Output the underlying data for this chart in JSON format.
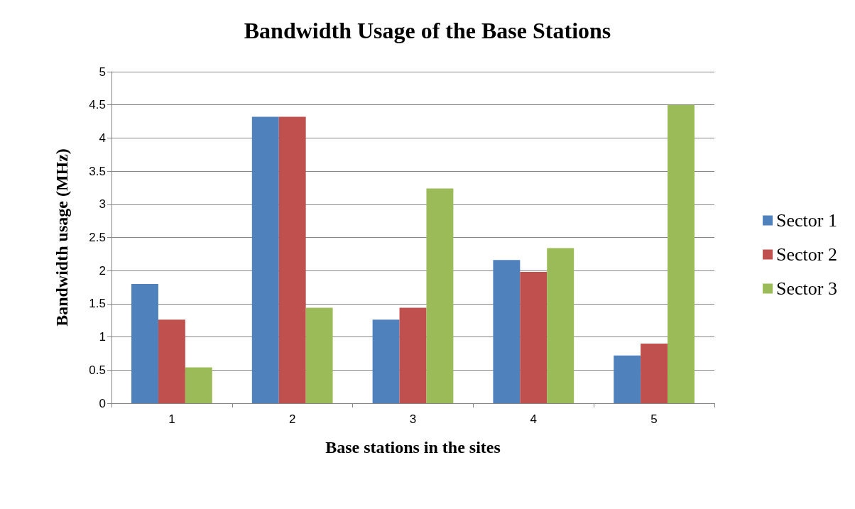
{
  "chart_data": {
    "type": "bar",
    "title": "Bandwidth Usage of the Base Stations",
    "xlabel": "Base stations in the sites",
    "ylabel": "Bandwidth usage (MHz)",
    "categories": [
      "1",
      "2",
      "3",
      "4",
      "5"
    ],
    "series": [
      {
        "name": "Sector 1",
        "color": "#4f81bd",
        "values": [
          1.8,
          4.32,
          1.26,
          2.16,
          0.72
        ]
      },
      {
        "name": "Sector 2",
        "color": "#c0504d",
        "values": [
          1.26,
          4.32,
          1.44,
          1.98,
          0.9
        ]
      },
      {
        "name": "Sector 3",
        "color": "#9bbb59",
        "values": [
          0.54,
          1.44,
          3.24,
          2.34,
          4.5
        ]
      }
    ],
    "ylim": [
      0,
      5
    ],
    "yticks": [
      0,
      0.5,
      1,
      1.5,
      2,
      2.5,
      3,
      3.5,
      4,
      4.5,
      5
    ],
    "grid": "y",
    "legend": "right"
  }
}
